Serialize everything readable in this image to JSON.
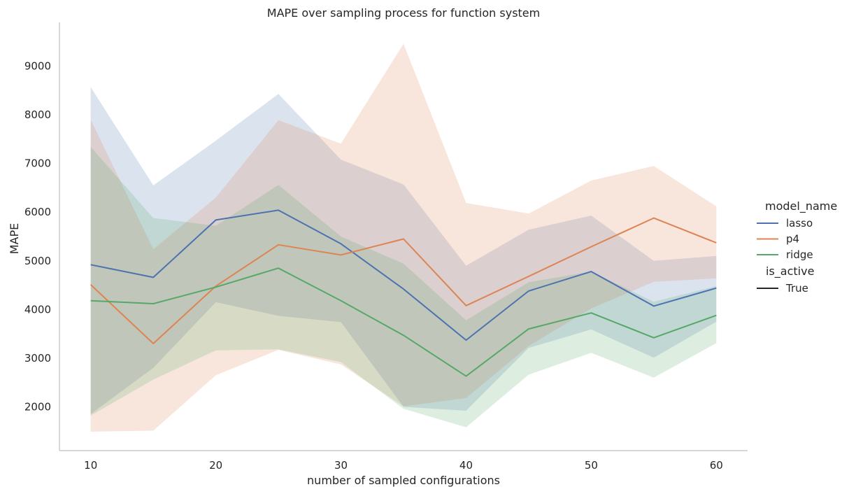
{
  "chart_data": {
    "type": "line",
    "title": "MAPE over sampling process for function system",
    "xlabel": "number of sampled configurations",
    "ylabel": "MAPE",
    "x": [
      10,
      15,
      20,
      25,
      30,
      35,
      40,
      45,
      50,
      55,
      60
    ],
    "xlim": [
      7.5,
      62.5
    ],
    "ylim": [
      1100,
      9900
    ],
    "xticks": [
      10,
      20,
      30,
      40,
      50,
      60
    ],
    "yticks": [
      2000,
      3000,
      4000,
      5000,
      6000,
      7000,
      8000,
      9000
    ],
    "grid": false,
    "legend_position": "right",
    "legend": {
      "hue_title": "model_name",
      "style_title": "is_active",
      "style_entries": [
        "True"
      ]
    },
    "series": [
      {
        "name": "lasso",
        "color": "#4c72b0",
        "values": [
          4920,
          4660,
          5840,
          6040,
          5350,
          4420,
          3370,
          4380,
          4780,
          4070,
          4440
        ],
        "ci_lower": [
          1850,
          2800,
          4150,
          3870,
          3740,
          2000,
          1920,
          3210,
          3590,
          3010,
          3750
        ],
        "ci_upper": [
          8570,
          6550,
          7470,
          8430,
          7080,
          6570,
          4900,
          5640,
          5930,
          5000,
          5100
        ]
      },
      {
        "name": "p4",
        "color": "#dd8452",
        "values": [
          4510,
          3300,
          4480,
          5330,
          5120,
          5450,
          4080,
          4680,
          5290,
          5880,
          5370
        ],
        "ci_lower": [
          1490,
          1510,
          2650,
          3170,
          2870,
          2010,
          2180,
          3250,
          4020,
          4570,
          4640
        ],
        "ci_upper": [
          7900,
          5240,
          6300,
          7890,
          7410,
          9460,
          6190,
          5970,
          6650,
          6950,
          6120
        ]
      },
      {
        "name": "ridge",
        "color": "#55a868",
        "values": [
          4180,
          4120,
          4460,
          4850,
          4180,
          3470,
          2630,
          3600,
          3930,
          3420,
          3880
        ],
        "ci_lower": [
          1820,
          2560,
          3160,
          3180,
          2920,
          1960,
          1580,
          2660,
          3110,
          2600,
          3310
        ],
        "ci_upper": [
          7340,
          5880,
          5720,
          6560,
          5500,
          4940,
          3780,
          4560,
          4780,
          4160,
          4480
        ]
      }
    ]
  }
}
